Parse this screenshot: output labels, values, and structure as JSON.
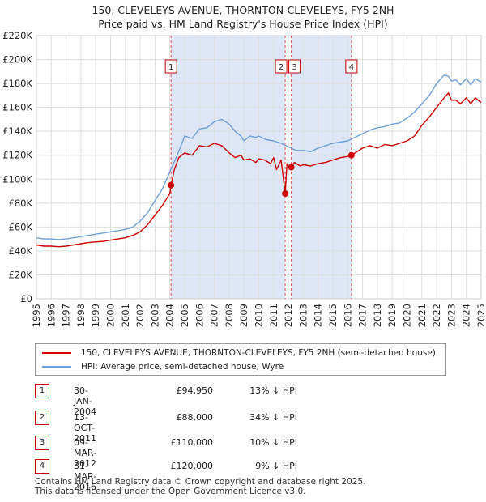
{
  "title": {
    "line1": "150, CLEVELEYS AVENUE, THORNTON-CLEVELEYS, FY5 2NH",
    "line2": "Price paid vs. HM Land Registry's House Price Index (HPI)"
  },
  "colors": {
    "price_paid": "#cc0000",
    "hpi": "#6f9fd8",
    "shade": "#dde6f7",
    "grid": "#dddddd",
    "marker_border": "#c00000"
  },
  "chart_data": {
    "type": "line",
    "title": "Price paid vs. HM Land Registry's House Price Index (HPI)",
    "xlabel": "",
    "ylabel": "",
    "xlim": [
      1995,
      2025
    ],
    "ylim": [
      0,
      220000
    ],
    "y_ticks": [
      "£0",
      "£20K",
      "£40K",
      "£60K",
      "£80K",
      "£100K",
      "£120K",
      "£140K",
      "£160K",
      "£180K",
      "£200K",
      "£220K"
    ],
    "x_ticks": [
      "1995",
      "1996",
      "1997",
      "1998",
      "1999",
      "2000",
      "2001",
      "2002",
      "2003",
      "2004",
      "2005",
      "2006",
      "2007",
      "2008",
      "2009",
      "2010",
      "2011",
      "2012",
      "2013",
      "2014",
      "2015",
      "2016",
      "2017",
      "2018",
      "2019",
      "2020",
      "2021",
      "2022",
      "2023",
      "2024",
      "2025"
    ],
    "grid": true,
    "shaded_ranges": [
      [
        2004.08,
        2011.78
      ],
      [
        2012.19,
        2016.25
      ]
    ],
    "series": [
      {
        "name": "150, CLEVELEYS AVENUE, THORNTON-CLEVELEYS, FY5 2NH (semi-detached house)",
        "x": [
          1995,
          1995.5,
          1996,
          1996.5,
          1997,
          1997.5,
          1998,
          1998.5,
          1999,
          1999.5,
          2000,
          2000.5,
          2001,
          2001.5,
          2002,
          2002.5,
          2003,
          2003.5,
          2004,
          2004.08,
          2004.3,
          2004.6,
          2005,
          2005.5,
          2006,
          2006.5,
          2007,
          2007.5,
          2008,
          2008.4,
          2008.8,
          2009,
          2009.4,
          2009.8,
          2010,
          2010.4,
          2010.8,
          2011,
          2011.2,
          2011.5,
          2011.78,
          2011.9,
          2012.1,
          2012.19,
          2012.4,
          2012.8,
          2013,
          2013.5,
          2014,
          2014.5,
          2015,
          2015.5,
          2016,
          2016.25,
          2016.5,
          2017,
          2017.5,
          2018,
          2018.5,
          2019,
          2019.5,
          2020,
          2020.5,
          2021,
          2021.5,
          2022,
          2022.5,
          2022.8,
          2023,
          2023.3,
          2023.6,
          2024,
          2024.3,
          2024.6,
          2025
        ],
        "values": [
          45000,
          44000,
          44000,
          43500,
          44000,
          45000,
          46000,
          47000,
          47500,
          48000,
          49000,
          50000,
          51000,
          53000,
          56000,
          62000,
          70000,
          78000,
          88000,
          94950,
          108000,
          118000,
          122000,
          120000,
          128000,
          127000,
          130000,
          128000,
          122000,
          118000,
          120000,
          116000,
          117000,
          114000,
          117000,
          116000,
          113000,
          118000,
          108000,
          116000,
          88000,
          113000,
          109000,
          110000,
          114000,
          111000,
          112000,
          111000,
          113000,
          114000,
          116000,
          118000,
          119000,
          120000,
          122000,
          126000,
          128000,
          126000,
          129000,
          128000,
          130000,
          132000,
          136000,
          145000,
          152000,
          160000,
          168000,
          172000,
          166000,
          166000,
          163000,
          168000,
          163000,
          168000,
          164000
        ],
        "color": "#cc0000"
      },
      {
        "name": "HPI: Average price, semi-detached house, Wyre",
        "x": [
          1995,
          1995.5,
          1996,
          1996.5,
          1997,
          1997.5,
          1998,
          1998.5,
          1999,
          1999.5,
          2000,
          2000.5,
          2001,
          2001.5,
          2002,
          2002.5,
          2003,
          2003.5,
          2004,
          2004.5,
          2005,
          2005.5,
          2006,
          2006.5,
          2007,
          2007.5,
          2008,
          2008.4,
          2008.8,
          2009,
          2009.4,
          2009.8,
          2010,
          2010.5,
          2011,
          2011.5,
          2012,
          2012.5,
          2013,
          2013.5,
          2014,
          2014.5,
          2015,
          2015.5,
          2016,
          2016.5,
          2017,
          2017.5,
          2018,
          2018.5,
          2019,
          2019.5,
          2020,
          2020.5,
          2021,
          2021.5,
          2022,
          2022.5,
          2022.8,
          2023,
          2023.3,
          2023.6,
          2024,
          2024.3,
          2024.6,
          2025
        ],
        "values": [
          51000,
          50000,
          50000,
          49500,
          50000,
          51000,
          52000,
          53000,
          54000,
          55000,
          56000,
          57000,
          58000,
          60000,
          65000,
          72000,
          82000,
          92000,
          106000,
          120000,
          136000,
          134000,
          142000,
          143000,
          148000,
          150000,
          146000,
          140000,
          136000,
          132000,
          136000,
          135000,
          136000,
          133000,
          132000,
          130000,
          127000,
          124000,
          124000,
          123000,
          126000,
          128000,
          130000,
          131000,
          132000,
          135000,
          138000,
          141000,
          143000,
          144000,
          146000,
          147000,
          151000,
          156000,
          163000,
          170000,
          180000,
          187000,
          186000,
          182000,
          183000,
          179000,
          184000,
          179000,
          184000,
          181000
        ],
        "color": "#6f9fd8"
      }
    ],
    "annotations": [
      {
        "label": "1",
        "x": 2004.08
      },
      {
        "label": "2",
        "x": 2011.78
      },
      {
        "label": "3",
        "x": 2012.19
      },
      {
        "label": "4",
        "x": 2016.25
      }
    ],
    "sale_points": [
      {
        "x": 2004.08,
        "y": 94950
      },
      {
        "x": 2011.78,
        "y": 88000
      },
      {
        "x": 2012.19,
        "y": 110000
      },
      {
        "x": 2016.25,
        "y": 120000
      }
    ]
  },
  "legend": {
    "price_paid_label": "150, CLEVELEYS AVENUE, THORNTON-CLEVELEYS, FY5 2NH (semi-detached house)",
    "hpi_label": "HPI: Average price, semi-detached house, Wyre"
  },
  "transactions": [
    {
      "num": "1",
      "date": "30-JAN-2004",
      "price": "£94,950",
      "hpi": "13% ↓ HPI"
    },
    {
      "num": "2",
      "date": "13-OCT-2011",
      "price": "£88,000",
      "hpi": "34% ↓ HPI"
    },
    {
      "num": "3",
      "date": "09-MAR-2012",
      "price": "£110,000",
      "hpi": "10% ↓ HPI"
    },
    {
      "num": "4",
      "date": "31-MAR-2016",
      "price": "£120,000",
      "hpi": "9% ↓ HPI"
    }
  ],
  "footer": {
    "line1": "Contains HM Land Registry data © Crown copyright and database right 2025.",
    "line2": "This data is licensed under the Open Government Licence v3.0."
  }
}
